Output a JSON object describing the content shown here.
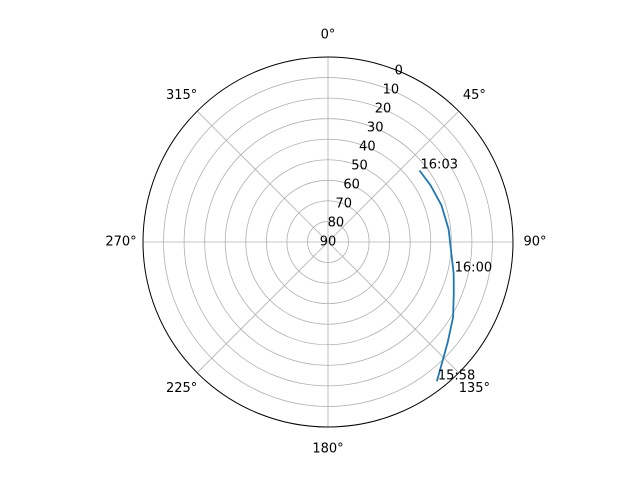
{
  "chart_data": {
    "type": "line",
    "projection": "polar",
    "theta_zero_location": "N",
    "theta_direction": "clockwise",
    "radial_axis": "elevation",
    "rlim": [
      90,
      0
    ],
    "rticks": [
      0,
      10,
      20,
      30,
      40,
      50,
      60,
      70,
      80,
      90
    ],
    "rtick_labels": [
      "0",
      "10",
      "20",
      "30",
      "40",
      "50",
      "60",
      "70",
      "80",
      "90"
    ],
    "theta_ticks_deg": [
      0,
      45,
      90,
      135,
      180,
      225,
      270,
      315
    ],
    "theta_tick_labels": [
      "0°",
      "45°",
      "90°",
      "135°",
      "180°",
      "225°",
      "270°",
      "315°"
    ],
    "grid": true,
    "series": [
      {
        "color": "#1f77b4",
        "points": [
          {
            "azimuth": 142.0,
            "elevation": 4.0
          },
          {
            "azimuth": 138.0,
            "elevation": 8.0
          },
          {
            "azimuth": 130.0,
            "elevation": 14.0
          },
          {
            "azimuth": 121.0,
            "elevation": 19.0
          },
          {
            "azimuth": 112.0,
            "elevation": 24.0
          },
          {
            "azimuth": 104.0,
            "elevation": 27.0
          },
          {
            "azimuth": 94.0,
            "elevation": 30.0
          },
          {
            "azimuth": 84.0,
            "elevation": 31.0
          },
          {
            "azimuth": 72.0,
            "elevation": 32.0
          },
          {
            "azimuth": 61.0,
            "elevation": 33.0
          },
          {
            "azimuth": 52.0,
            "elevation": 33.5
          }
        ]
      }
    ],
    "annotations": [
      {
        "text": "16:03",
        "azimuth": 52.0,
        "elevation": 33.5
      },
      {
        "text": "16:00",
        "azimuth": 104.0,
        "elevation": 27.0
      },
      {
        "text": "15:58",
        "azimuth": 142.0,
        "elevation": 4.0
      }
    ]
  }
}
